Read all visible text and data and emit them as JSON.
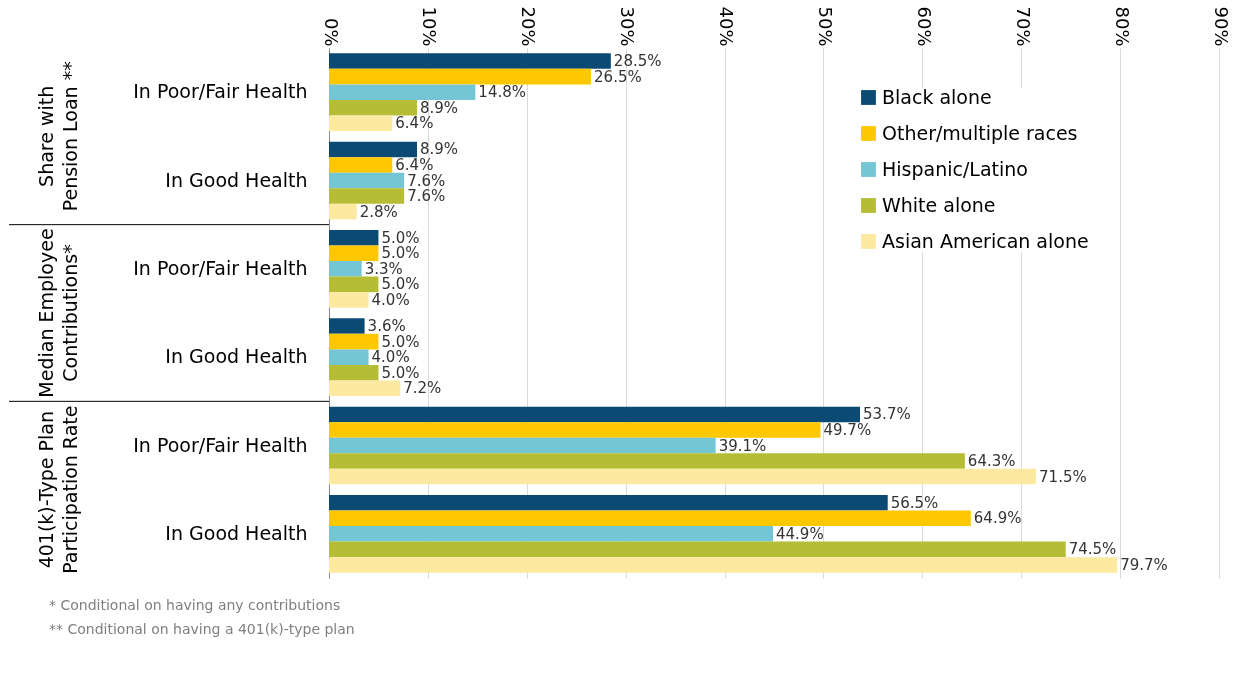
{
  "chart_data": {
    "type": "bar",
    "orientation": "horizontal",
    "categories": [
      "In Poor/Fair Health",
      "In Good Health",
      "In Poor/Fair Health",
      "In Good Health",
      "In Poor/Fair Health",
      "In Good Health"
    ],
    "series": [
      {
        "name": "Black alone",
        "color": "#0b4a73",
        "values": [
          28.5,
          8.9,
          5.0,
          3.6,
          53.7,
          56.5
        ],
        "value_labels": [
          "28.5%",
          "8.9%",
          "5.0%",
          "3.6%",
          "53.7%",
          "56.5%"
        ]
      },
      {
        "name": "Other/multiple races",
        "color": "#fdc800",
        "values": [
          26.5,
          6.4,
          5.0,
          5.0,
          49.7,
          64.9
        ],
        "value_labels": [
          "26.5%",
          "6.4%",
          "5.0%",
          "5.0%",
          "49.7%",
          "64.9%"
        ]
      },
      {
        "name": "Hispanic/Latino",
        "color": "#74c6d4",
        "values": [
          14.8,
          7.6,
          3.3,
          4.0,
          39.1,
          44.9
        ],
        "value_labels": [
          "14.8%",
          "7.6%",
          "3.3%",
          "4.0%",
          "39.1%",
          "44.9%"
        ]
      },
      {
        "name": "White alone",
        "color": "#b5bd35",
        "values": [
          8.9,
          7.6,
          5.0,
          5.0,
          64.3,
          74.5
        ],
        "value_labels": [
          "8.9%",
          "7.6%",
          "5.0%",
          "5.0%",
          "64.3%",
          "74.5%"
        ]
      },
      {
        "name": "Asian American alone",
        "color": "#fde9a0",
        "values": [
          6.4,
          2.8,
          4.0,
          7.2,
          71.5,
          79.7
        ],
        "value_labels": [
          "6.4%",
          "2.8%",
          "4.0%",
          "7.2%",
          "71.5%",
          "79.7%"
        ]
      }
    ],
    "xlim": [
      0,
      90
    ],
    "xticks": [
      {
        "value": 0,
        "label": "0%"
      },
      {
        "value": 10,
        "label": "10%"
      },
      {
        "value": 20,
        "label": "20%"
      },
      {
        "value": 30,
        "label": "30%"
      },
      {
        "value": 40,
        "label": "40%"
      },
      {
        "value": 50,
        "label": "50%"
      },
      {
        "value": 60,
        "label": "60%"
      },
      {
        "value": 70,
        "label": "70%"
      },
      {
        "value": 80,
        "label": "80%"
      },
      {
        "value": 90,
        "label": "90%"
      }
    ],
    "grid": "x",
    "legend": "right",
    "annotations": [
      "Share with Pension Loan **",
      "Median Employee Contributions*",
      "401(k)-Type Plan Participation Rate",
      "* Conditional on having any contributions",
      "**  Conditional on having a 401(k)-type plan"
    ]
  }
}
